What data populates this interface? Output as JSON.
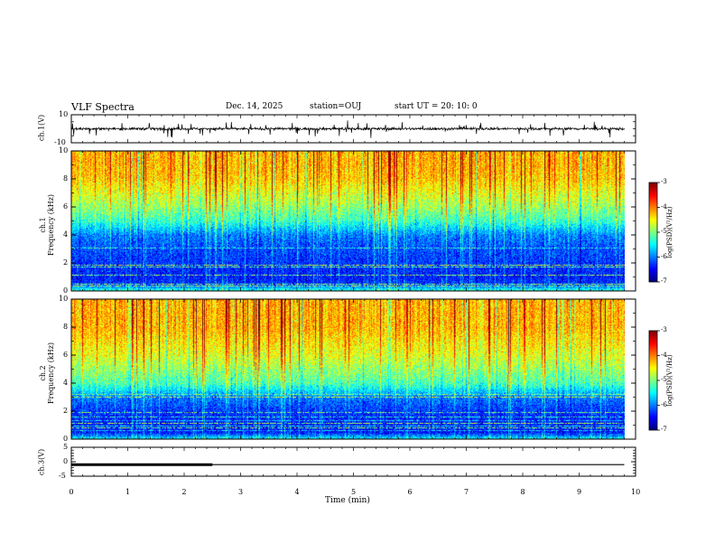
{
  "header": {
    "title": "VLF Spectra",
    "date": "Dec. 14, 2025",
    "station": "station=OUJ",
    "start": "start  UT =   20: 10: 0"
  },
  "chart_data": [
    {
      "type": "line",
      "name": "ch1-waveform",
      "ylabel": "ch.1(V)",
      "ylim": [
        -10,
        10
      ],
      "yticks": [
        "10",
        "-10"
      ],
      "description_values": "noisy waveform around 0 V with spikes to about +/-5 V"
    },
    {
      "type": "heatmap",
      "name": "ch1-spectrogram",
      "ylabel": "ch.1\nFrequency (kHz)",
      "ylabel_lines": [
        "ch.1",
        "Frequency  (kHz)"
      ],
      "ylim": [
        0,
        10
      ],
      "yticks": [
        "0",
        "2",
        "4",
        "6",
        "8",
        "10"
      ],
      "colorbar": {
        "label": "log(PSD)(V²/Hz)",
        "ticks": [
          "-3",
          "-4",
          "-5",
          "-6",
          "-7"
        ],
        "range": [
          -7,
          -3
        ]
      },
      "profile": {
        "bands_khz": [
          0,
          0.5,
          1,
          2,
          3,
          4,
          5,
          6,
          7,
          8,
          9,
          10
        ],
        "mean_logpsd": [
          -5.2,
          -6.3,
          -6.4,
          -6.3,
          -6.2,
          -6.0,
          -5.3,
          -4.9,
          -4.6,
          -4.3,
          -4.2,
          -4.2
        ]
      }
    },
    {
      "type": "heatmap",
      "name": "ch2-spectrogram",
      "ylabel_lines": [
        "ch.2",
        "Frequency  (kHz)"
      ],
      "ylim": [
        0,
        10
      ],
      "yticks": [
        "0",
        "2",
        "4",
        "6",
        "8",
        "10"
      ],
      "colorbar": {
        "label": "log(PSD)(V²/Hz)",
        "ticks": [
          "-3",
          "-4",
          "-5",
          "-6",
          "-7"
        ],
        "range": [
          -7,
          -3
        ]
      },
      "profile": {
        "bands_khz": [
          0,
          0.5,
          1,
          2,
          3,
          4,
          5,
          6,
          7,
          8,
          9,
          10
        ],
        "mean_logpsd": [
          -5.4,
          -6.4,
          -6.4,
          -6.3,
          -6.0,
          -5.2,
          -4.9,
          -4.6,
          -4.4,
          -4.2,
          -4.2,
          -4.2
        ]
      }
    },
    {
      "type": "line",
      "name": "ch3-waveform",
      "ylabel": "ch.3(V)",
      "ylim": [
        -5,
        5
      ],
      "yticks": [
        "5",
        "0",
        "-5"
      ],
      "series": [
        {
          "name": "thick",
          "x": [
            0,
            2.5
          ],
          "y": [
            -1.0,
            -1.0
          ]
        },
        {
          "name": "thin",
          "x": [
            0,
            9.8
          ],
          "y": [
            -1.0,
            -1.0
          ]
        }
      ]
    }
  ],
  "xaxis": {
    "label": "Time  (min)",
    "ticks": [
      "0",
      "1",
      "2",
      "3",
      "4",
      "5",
      "6",
      "7",
      "8",
      "9",
      "10"
    ],
    "range": [
      0,
      10
    ],
    "data_end": 9.8
  }
}
